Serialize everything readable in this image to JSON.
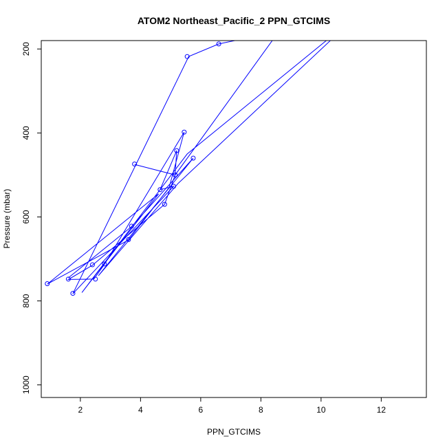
{
  "chart_data": {
    "type": "line",
    "title": "ATOM2 Northeast_Pacific_2 PPN_GTCIMS",
    "xlabel": "PPN_GTCIMS",
    "ylabel": "Pressure (mbar)",
    "xlim": [
      0.7,
      13.5
    ],
    "ylim": [
      1030,
      180
    ],
    "y_reversed": true,
    "xticks": [
      2,
      4,
      6,
      8,
      10,
      12
    ],
    "yticks": [
      200,
      400,
      600,
      800,
      1000
    ],
    "grid": false,
    "legend": "none",
    "color": "#0000ff",
    "series": [
      {
        "x": [
          3.8,
          5.15,
          5.2,
          4.65,
          5.1,
          1.75,
          5.6,
          6.6,
          8.6,
          5.15,
          4.8,
          2.4,
          1.6,
          2.45,
          2.8,
          5.45,
          4.95,
          3.6,
          0.9,
          4.6,
          2.05,
          5.55,
          11.2,
          5.25,
          2.6,
          5.75,
          3.7,
          1.6
        ],
        "y": [
          475,
          500,
          442,
          535,
          527,
          783,
          218,
          188,
          158,
          500,
          570,
          715,
          749,
          748,
          713,
          398,
          530,
          655,
          760,
          545,
          780,
          450,
          120,
          520,
          740,
          460,
          623,
          745
        ]
      }
    ],
    "markers": {
      "x": [
        3.8,
        5.15,
        5.2,
        4.65,
        5.1,
        1.75,
        5.55,
        6.6,
        5.15,
        4.8,
        2.4,
        1.6,
        2.5,
        2.8,
        5.45,
        3.6,
        0.9,
        3.7,
        5.75
      ],
      "y": [
        474,
        500,
        442,
        535,
        527,
        782,
        218,
        188,
        500,
        570,
        714,
        748,
        748,
        712,
        398,
        654,
        759,
        622,
        460
      ]
    }
  }
}
